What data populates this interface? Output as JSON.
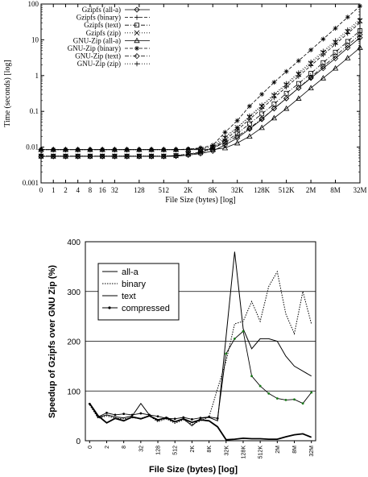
{
  "chart_data": [
    {
      "type": "line",
      "xlabel": "File Size (bytes) [log]",
      "ylabel": "Time (seconds) [log]",
      "yscale": "log",
      "ylim": [
        0.001,
        100
      ],
      "y_ticks": [
        "0.001",
        "0.01",
        "0.1",
        "1",
        "10",
        "100"
      ],
      "x_ticks": [
        "0",
        "1",
        "2",
        "4",
        "8",
        "16",
        "32",
        "128",
        "512",
        "2K",
        "8K",
        "32K",
        "128K",
        "512K",
        "2M",
        "8M",
        "32M"
      ],
      "x_tick_positions": [
        0,
        1,
        2,
        3,
        4,
        5,
        6,
        8,
        10,
        12,
        14,
        16,
        18,
        20,
        22,
        24,
        26
      ],
      "x_points": [
        0,
        1,
        2,
        3,
        4,
        5,
        6,
        7,
        8,
        9,
        10,
        11,
        12,
        13,
        14,
        15,
        16,
        17,
        18,
        19,
        20,
        21,
        22,
        23,
        24,
        25,
        26
      ],
      "legend_position": "top-left",
      "series": [
        {
          "name": "Gzipfs (all-a)",
          "marker": "diamond",
          "dash": "solid",
          "values": [
            0.0055,
            0.0055,
            0.0055,
            0.0055,
            0.0055,
            0.0055,
            0.0055,
            0.0055,
            0.0055,
            0.0055,
            0.0055,
            0.0056,
            0.006,
            0.0066,
            0.0078,
            0.0115,
            0.018,
            0.032,
            0.06,
            0.12,
            0.23,
            0.45,
            0.85,
            1.6,
            3.0,
            6.0,
            11.5
          ]
        },
        {
          "name": "Gzipfs (binary)",
          "marker": "plus",
          "dash": "dash",
          "values": [
            0.0056,
            0.0056,
            0.0056,
            0.0056,
            0.0056,
            0.0056,
            0.0056,
            0.0056,
            0.0056,
            0.0056,
            0.0056,
            0.0058,
            0.0064,
            0.0072,
            0.0095,
            0.016,
            0.03,
            0.06,
            0.12,
            0.24,
            0.48,
            0.95,
            1.9,
            3.8,
            7.5,
            15,
            30
          ]
        },
        {
          "name": "Gzipfs (text)",
          "marker": "square",
          "dash": "dashdot",
          "values": [
            0.0056,
            0.0056,
            0.0056,
            0.0056,
            0.0056,
            0.0056,
            0.0056,
            0.0056,
            0.0056,
            0.0056,
            0.0056,
            0.0058,
            0.0063,
            0.007,
            0.009,
            0.014,
            0.024,
            0.045,
            0.085,
            0.16,
            0.32,
            0.6,
            1.15,
            2.3,
            4.5,
            9,
            18
          ]
        },
        {
          "name": "Gzipfs (zip)",
          "marker": "cross",
          "dash": "dot",
          "values": [
            0.0056,
            0.0056,
            0.0056,
            0.0056,
            0.0056,
            0.0056,
            0.0056,
            0.0056,
            0.0056,
            0.0056,
            0.0056,
            0.0058,
            0.0064,
            0.0073,
            0.01,
            0.018,
            0.035,
            0.07,
            0.14,
            0.28,
            0.56,
            1.1,
            2.2,
            4.4,
            8.5,
            17,
            34
          ]
        },
        {
          "name": "GNU-Zip (all-a)",
          "marker": "triangle",
          "dash": "solid",
          "values": [
            0.0085,
            0.0085,
            0.0085,
            0.0085,
            0.0085,
            0.0085,
            0.0085,
            0.0085,
            0.0085,
            0.0085,
            0.0085,
            0.0085,
            0.0085,
            0.0085,
            0.0085,
            0.0095,
            0.013,
            0.02,
            0.035,
            0.065,
            0.12,
            0.23,
            0.45,
            0.85,
            1.6,
            3.1,
            6.0
          ]
        },
        {
          "name": "GNU-Zip (binary)",
          "marker": "asterisk",
          "dash": "dash",
          "values": [
            0.0085,
            0.0085,
            0.0085,
            0.0085,
            0.0085,
            0.0085,
            0.0085,
            0.0085,
            0.0085,
            0.0085,
            0.0085,
            0.0085,
            0.0088,
            0.0095,
            0.0112,
            0.026,
            0.055,
            0.14,
            0.3,
            0.65,
            1.3,
            2.6,
            5.2,
            10.5,
            21,
            43,
            88
          ]
        },
        {
          "name": "GNU-Zip (text)",
          "marker": "diamond",
          "dash": "dashdot",
          "values": [
            0.0085,
            0.0085,
            0.0085,
            0.0085,
            0.0085,
            0.0085,
            0.0085,
            0.0085,
            0.0085,
            0.0085,
            0.0085,
            0.0085,
            0.0087,
            0.009,
            0.0098,
            0.0135,
            0.02,
            0.034,
            0.062,
            0.12,
            0.23,
            0.45,
            0.9,
            1.8,
            3.5,
            7.0,
            14
          ]
        },
        {
          "name": "GNU-Zip (zip)",
          "marker": "plus",
          "dash": "dot",
          "values": [
            0.0085,
            0.0085,
            0.0085,
            0.0085,
            0.0085,
            0.0085,
            0.0085,
            0.0085,
            0.0085,
            0.0085,
            0.0085,
            0.0085,
            0.0088,
            0.0095,
            0.011,
            0.02,
            0.035,
            0.075,
            0.15,
            0.3,
            0.6,
            1.2,
            2.4,
            4.8,
            9.5,
            19,
            38
          ]
        }
      ]
    },
    {
      "type": "line",
      "xlabel": "File Size (bytes) [log]",
      "ylabel": "Speedup of Gzipfs over GNU Zip (%)",
      "ylim": [
        0,
        400
      ],
      "y_ticks": [
        "0",
        "100",
        "200",
        "300",
        "400"
      ],
      "grid": true,
      "x_ticks": [
        "0",
        "2",
        "8",
        "32",
        "128",
        "512",
        "2K",
        "8K",
        "32K",
        "128K",
        "512K",
        "2M",
        "8M",
        "32M"
      ],
      "x_tick_positions": [
        0,
        2,
        4,
        6,
        8,
        10,
        12,
        14,
        16,
        18,
        20,
        22,
        24,
        26
      ],
      "x_points": [
        0,
        1,
        2,
        3,
        4,
        5,
        6,
        7,
        8,
        9,
        10,
        11,
        12,
        13,
        14,
        15,
        16,
        17,
        18,
        19,
        20,
        21,
        22,
        23,
        24,
        25,
        26
      ],
      "legend_position": "top-left",
      "series": [
        {
          "name": "all-a",
          "style": "solid-thick",
          "values": [
            75,
            50,
            36,
            45,
            40,
            48,
            44,
            50,
            42,
            46,
            38,
            44,
            37,
            42,
            40,
            28,
            2,
            3,
            5,
            4,
            4,
            3,
            3,
            8,
            12,
            14,
            7
          ]
        },
        {
          "name": "binary",
          "style": "dotted",
          "values": [
            72,
            45,
            50,
            45,
            44,
            46,
            45,
            50,
            38,
            44,
            35,
            42,
            33,
            40,
            48,
            105,
            160,
            235,
            240,
            280,
            240,
            310,
            340,
            255,
            215,
            300,
            235
          ]
        },
        {
          "name": "text",
          "style": "solid-thin",
          "values": [
            75,
            47,
            52,
            48,
            46,
            50,
            75,
            52,
            40,
            48,
            38,
            44,
            30,
            45,
            47,
            40,
            210,
            380,
            225,
            185,
            205,
            205,
            200,
            170,
            150,
            140,
            130
          ]
        },
        {
          "name": "compressed",
          "style": "solid-dots",
          "values": [
            74,
            48,
            56,
            52,
            54,
            52,
            55,
            52,
            49,
            45,
            44,
            47,
            43,
            46,
            48,
            45,
            175,
            205,
            220,
            130,
            110,
            95,
            85,
            82,
            83,
            75,
            97
          ]
        }
      ]
    }
  ]
}
